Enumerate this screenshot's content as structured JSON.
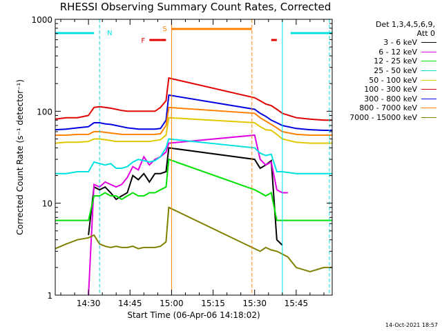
{
  "title": "RHESSI Observing Summary Count Rates, Corrected",
  "timestamp": "14-Oct-2021 18:57",
  "legend": {
    "header_line1": "Det 1,3,4,5,6,9,",
    "header_line2": "Att 0",
    "entries": [
      {
        "label": "3 - 6 keV",
        "color": "#000000"
      },
      {
        "label": "6 - 12 keV",
        "color": "#e100e1"
      },
      {
        "label": "12 - 25 keV",
        "color": "#00e100"
      },
      {
        "label": "25 - 50 keV",
        "color": "#00e1e1"
      },
      {
        "label": "50 - 100 keV",
        "color": "#e1c800"
      },
      {
        "label": "100 - 300 keV",
        "color": "#e10000"
      },
      {
        "label": "300 - 800 keV",
        "color": "#0000e1"
      },
      {
        "label": "800 - 7000 keV",
        "color": "#ff8000"
      },
      {
        "label": "7000 - 15000 keV",
        "color": "#808000"
      }
    ]
  },
  "chart_data": {
    "type": "line",
    "title": "RHESSI Observing Summary Count Rates, Corrected",
    "xlabel": "Start Time (06-Apr-06 14:18:02)",
    "ylabel": "Corrected Count Rate (s⁻¹ detector⁻¹)",
    "yscale": "log",
    "ylim": [
      1,
      1000
    ],
    "xlim": [
      "14:18",
      "15:58"
    ],
    "xticks": [
      "14:30",
      "14:45",
      "15:00",
      "15:15",
      "15:30",
      "15:45"
    ],
    "yticks": [
      "1",
      "10",
      "100",
      "1000"
    ],
    "grid": false,
    "legend_position": "right",
    "data_gap": [
      "14:59",
      "15:30"
    ],
    "series": [
      {
        "name": "3 - 6 keV",
        "color": "#000000",
        "x": [
          "14:30",
          "14:32",
          "14:34",
          "14:36",
          "14:38",
          "14:40",
          "14:42",
          "14:44",
          "14:46",
          "14:48",
          "14:50",
          "14:52",
          "14:54",
          "14:56",
          "14:58",
          "14:59",
          "15:30",
          "15:32",
          "15:34",
          "15:36",
          "15:38",
          "15:40"
        ],
        "y": [
          4.5,
          15,
          14,
          15,
          13,
          11,
          12,
          13,
          20,
          18,
          21,
          17,
          21,
          21,
          22,
          40,
          30,
          24,
          26,
          29,
          4,
          3.5
        ]
      },
      {
        "name": "6 - 12 keV",
        "color": "#e100e1",
        "x": [
          "14:30",
          "14:32",
          "14:34",
          "14:36",
          "14:38",
          "14:40",
          "14:42",
          "14:44",
          "14:46",
          "14:48",
          "14:50",
          "14:52",
          "14:54",
          "14:56",
          "14:58",
          "14:59",
          "15:30",
          "15:32",
          "15:34",
          "15:36",
          "15:38",
          "15:40",
          "15:42"
        ],
        "y": [
          1,
          16,
          15,
          17,
          16,
          15,
          16,
          19,
          25,
          23,
          32,
          26,
          30,
          32,
          36,
          45,
          55,
          30,
          26,
          28,
          14,
          13,
          13
        ]
      },
      {
        "name": "12 - 25 keV",
        "color": "#00e100",
        "x": [
          "14:18",
          "14:22",
          "14:26",
          "14:30",
          "14:32",
          "14:34",
          "14:36",
          "14:38",
          "14:40",
          "14:42",
          "14:44",
          "14:46",
          "14:48",
          "14:50",
          "14:52",
          "14:54",
          "14:56",
          "14:58",
          "14:59",
          "15:30",
          "15:32",
          "15:34",
          "15:36",
          "15:38",
          "15:40",
          "15:45",
          "15:50",
          "15:55",
          "15:58"
        ],
        "y": [
          6.5,
          6.5,
          6.5,
          6.5,
          12,
          12,
          13,
          12,
          12,
          11,
          12,
          13,
          12,
          12,
          13,
          13,
          14,
          15,
          30,
          14,
          13,
          12,
          13,
          6.5,
          6.5,
          6.5,
          6.5,
          6.5,
          6.5
        ]
      },
      {
        "name": "25 - 50 keV",
        "color": "#00e1e1",
        "x": [
          "14:18",
          "14:22",
          "14:26",
          "14:30",
          "14:32",
          "14:34",
          "14:36",
          "14:38",
          "14:40",
          "14:42",
          "14:44",
          "14:46",
          "14:48",
          "14:50",
          "14:52",
          "14:54",
          "14:56",
          "14:58",
          "14:59",
          "15:30",
          "15:32",
          "15:34",
          "15:36",
          "15:38",
          "15:40",
          "15:45",
          "15:50",
          "15:55",
          "15:58"
        ],
        "y": [
          21,
          21,
          22,
          22,
          28,
          27,
          26,
          27,
          24,
          24,
          25,
          28,
          30,
          29,
          28,
          29,
          32,
          40,
          50,
          40,
          35,
          33,
          34,
          22,
          22,
          21,
          21,
          21,
          21
        ]
      },
      {
        "name": "50 - 100 keV",
        "color": "#e1c800",
        "x": [
          "14:18",
          "14:22",
          "14:26",
          "14:30",
          "14:32",
          "14:34",
          "14:36",
          "14:38",
          "14:40",
          "14:42",
          "14:44",
          "14:46",
          "14:48",
          "14:50",
          "14:52",
          "14:54",
          "14:56",
          "14:58",
          "14:59",
          "15:30",
          "15:32",
          "15:34",
          "15:36",
          "15:38",
          "15:40",
          "15:45",
          "15:50",
          "15:55",
          "15:58"
        ],
        "y": [
          45,
          46,
          46,
          47,
          50,
          50,
          49,
          48,
          47,
          47,
          47,
          47,
          47,
          47,
          47,
          48,
          49,
          55,
          85,
          75,
          68,
          63,
          62,
          56,
          50,
          46,
          45,
          45,
          45
        ]
      },
      {
        "name": "100 - 300 keV",
        "color": "#e10000",
        "x": [
          "14:18",
          "14:22",
          "14:26",
          "14:30",
          "14:32",
          "14:34",
          "14:36",
          "14:38",
          "14:40",
          "14:42",
          "14:44",
          "14:46",
          "14:48",
          "14:50",
          "14:52",
          "14:54",
          "14:56",
          "14:58",
          "14:59",
          "15:30",
          "15:32",
          "15:34",
          "15:36",
          "15:38",
          "15:40",
          "15:45",
          "15:50",
          "15:55",
          "15:58"
        ],
        "y": [
          82,
          85,
          85,
          90,
          110,
          112,
          110,
          108,
          105,
          102,
          100,
          100,
          100,
          100,
          100,
          100,
          110,
          130,
          230,
          140,
          130,
          120,
          115,
          105,
          95,
          85,
          82,
          80,
          80
        ]
      },
      {
        "name": "300 - 800 keV",
        "color": "#0000e1",
        "x": [
          "14:18",
          "14:22",
          "14:26",
          "14:30",
          "14:32",
          "14:34",
          "14:36",
          "14:38",
          "14:40",
          "14:42",
          "14:44",
          "14:46",
          "14:48",
          "14:50",
          "14:52",
          "14:54",
          "14:56",
          "14:58",
          "14:59",
          "15:30",
          "15:32",
          "15:34",
          "15:36",
          "15:38",
          "15:40",
          "15:45",
          "15:50",
          "15:55",
          "15:58"
        ],
        "y": [
          63,
          64,
          66,
          68,
          75,
          75,
          73,
          72,
          70,
          68,
          66,
          65,
          64,
          64,
          64,
          64,
          65,
          80,
          150,
          105,
          95,
          88,
          80,
          75,
          70,
          65,
          63,
          62,
          62
        ]
      },
      {
        "name": "800 - 7000 keV",
        "color": "#ff8000",
        "x": [
          "14:18",
          "14:22",
          "14:26",
          "14:30",
          "14:32",
          "14:34",
          "14:36",
          "14:38",
          "14:40",
          "14:42",
          "14:44",
          "14:46",
          "14:48",
          "14:50",
          "14:52",
          "14:54",
          "14:56",
          "14:58",
          "14:59",
          "15:30",
          "15:32",
          "15:34",
          "15:36",
          "15:38",
          "15:40",
          "15:45",
          "15:50",
          "15:55",
          "15:58"
        ],
        "y": [
          55,
          55,
          56,
          56,
          60,
          60,
          59,
          58,
          57,
          56,
          56,
          56,
          56,
          56,
          56,
          56,
          57,
          70,
          110,
          95,
          85,
          78,
          72,
          66,
          60,
          56,
          55,
          55,
          55
        ]
      },
      {
        "name": "7000 - 15000 keV",
        "color": "#808000",
        "x": [
          "14:18",
          "14:22",
          "14:26",
          "14:30",
          "14:32",
          "14:34",
          "14:36",
          "14:38",
          "14:40",
          "14:42",
          "14:44",
          "14:46",
          "14:48",
          "14:50",
          "14:52",
          "14:54",
          "14:56",
          "14:58",
          "14:59",
          "15:30",
          "15:32",
          "15:34",
          "15:36",
          "15:38",
          "15:40",
          "15:42",
          "15:45",
          "15:50",
          "15:55",
          "15:58"
        ],
        "y": [
          3.2,
          3.6,
          4.0,
          4.2,
          4.5,
          3.6,
          3.4,
          3.3,
          3.4,
          3.3,
          3.3,
          3.4,
          3.2,
          3.3,
          3.3,
          3.3,
          3.4,
          3.8,
          9.0,
          3.2,
          3.0,
          3.3,
          3.1,
          3.0,
          2.8,
          2.6,
          2.0,
          1.8,
          2.0,
          2.0
        ]
      }
    ],
    "annotations": {
      "markers": [
        {
          "label": "N",
          "color": "#00e1e1"
        },
        {
          "label": "F",
          "color": "#e10000"
        },
        {
          "label": "S",
          "color": "#ff8000"
        }
      ],
      "night_bars": [
        [
          "14:18",
          "14:32"
        ],
        [
          "15:43",
          "15:58"
        ]
      ],
      "night_boundaries_dashed": [
        "14:34",
        "15:57"
      ],
      "night_boundaries_solid": [
        "15:40"
      ],
      "flare_bars": [
        [
          "14:52",
          "14:56"
        ],
        [
          "14:56",
          "14:58"
        ],
        [
          "15:36",
          "15:38"
        ]
      ],
      "saa_bar": [
        "15:00",
        "15:29"
      ],
      "saa_boundaries_solid": [
        "15:00"
      ],
      "saa_boundaries_dashed": [
        "15:29"
      ],
      "left_boundary_solid": [
        "14:18"
      ]
    }
  }
}
